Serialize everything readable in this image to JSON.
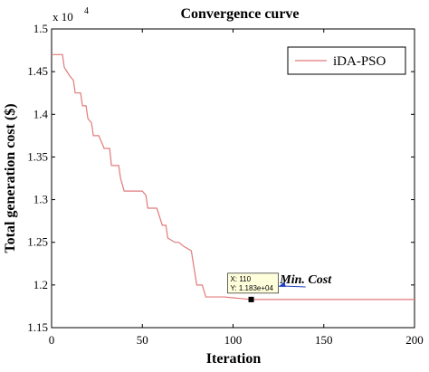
{
  "chart_data": {
    "type": "line",
    "title": "Convergence curve",
    "xlabel": "Iteration",
    "ylabel": "Total generation cost ($)",
    "xlim": [
      0,
      200
    ],
    "ylim": [
      1.15,
      1.5
    ],
    "y_multiplier_label": "x 10",
    "y_multiplier_exp": "4",
    "xticks": [
      0,
      50,
      100,
      150,
      200
    ],
    "yticks": [
      1.15,
      1.2,
      1.25,
      1.3,
      1.35,
      1.4,
      1.45,
      1.5
    ],
    "xtick_labels": [
      "0",
      "50",
      "100",
      "150",
      "200"
    ],
    "ytick_labels": [
      "1.15",
      "1.2",
      "1.25",
      "1.3",
      "1.35",
      "1.4",
      "1.45",
      "1.5"
    ],
    "legend_position": "top-right",
    "grid": false,
    "series": [
      {
        "name": "iDA-PSO",
        "color": "#e07a7a",
        "x": [
          0,
          6,
          7,
          10,
          12,
          13,
          16,
          17,
          19,
          20,
          22,
          23,
          26,
          29,
          32,
          33,
          37,
          38,
          40,
          50,
          52,
          53,
          58,
          61,
          63,
          64,
          68,
          70,
          73,
          77,
          80,
          83,
          85,
          95,
          100,
          105,
          110,
          200
        ],
        "y": [
          1.47,
          1.47,
          1.455,
          1.445,
          1.44,
          1.425,
          1.425,
          1.41,
          1.41,
          1.395,
          1.39,
          1.375,
          1.375,
          1.36,
          1.36,
          1.34,
          1.34,
          1.325,
          1.31,
          1.31,
          1.305,
          1.29,
          1.29,
          1.27,
          1.27,
          1.255,
          1.25,
          1.25,
          1.245,
          1.24,
          1.2,
          1.2,
          1.186,
          1.186,
          1.185,
          1.184,
          1.183,
          1.183
        ]
      }
    ],
    "datatip": {
      "x": 110,
      "y": 1.183,
      "line1": "X: 110",
      "line2": "Y: 1.183e+04"
    },
    "annotation": {
      "text": "Min. Cost",
      "x": 140,
      "y": 1.202
    }
  }
}
